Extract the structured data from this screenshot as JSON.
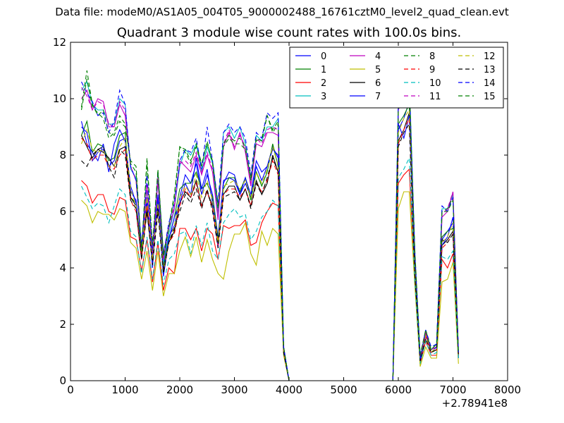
{
  "suptitle": "Data file: modeM0/AS1A05_004T05_9000002488_16761cztM0_level2_quad_clean.evt",
  "chart_data": {
    "type": "line",
    "title": "Quadrant 3 module wise count rates with 100.0s bins.",
    "xlabel": "",
    "ylabel": "",
    "x_offset_label": "+2.78941e8",
    "xlim": [
      0,
      8000
    ],
    "ylim": [
      0,
      12
    ],
    "xticks": [
      0,
      1000,
      2000,
      3000,
      4000,
      5000,
      6000,
      7000,
      8000
    ],
    "yticks": [
      0,
      2,
      4,
      6,
      8,
      10,
      12
    ],
    "grid": false,
    "legend_position": "top-right",
    "legend_columns": 4,
    "x": [
      200,
      300,
      400,
      500,
      600,
      700,
      800,
      900,
      1000,
      1100,
      1200,
      1300,
      1400,
      1500,
      1600,
      1700,
      1800,
      1900,
      2000,
      2100,
      2200,
      2300,
      2400,
      2500,
      2600,
      2700,
      2800,
      2900,
      3000,
      3100,
      3200,
      3300,
      3400,
      3500,
      3600,
      3700,
      3800,
      3900,
      4000,
      4100,
      5900,
      6000,
      6100,
      6200,
      6300,
      6400,
      6500,
      6600,
      6700,
      6800,
      6900,
      7000,
      7100
    ],
    "series": [
      {
        "name": "0",
        "color": "#0000ff",
        "dash": "solid",
        "values": [
          9.0,
          8.8,
          7.8,
          8.1,
          8.2,
          7.6,
          7.8,
          8.5,
          8.6,
          6.7,
          6.4,
          4.5,
          6.3,
          4.4,
          6.6,
          4.1,
          5.1,
          5.5,
          6.5,
          7.3,
          7.0,
          7.7,
          6.6,
          7.3,
          6.6,
          5.1,
          7.1,
          7.2,
          7.1,
          6.6,
          7.0,
          6.5,
          7.6,
          7.1,
          7.6,
          8.3,
          7.9,
          1.0,
          0.0,
          0.0,
          0.0,
          8.9,
          9.3,
          9.9,
          4.1,
          0.7,
          1.7,
          1.1,
          1.2,
          5.0,
          5.3,
          5.6,
          0.9
        ]
      },
      {
        "name": "1",
        "color": "#008000",
        "dash": "solid",
        "values": [
          8.7,
          9.2,
          8.1,
          8.4,
          8.3,
          7.8,
          7.9,
          8.7,
          8.8,
          6.5,
          6.3,
          4.6,
          6.1,
          4.2,
          6.4,
          4.0,
          5.0,
          5.8,
          6.8,
          7.0,
          7.0,
          7.4,
          6.8,
          7.0,
          6.5,
          5.0,
          6.8,
          7.2,
          7.2,
          6.7,
          7.2,
          6.4,
          7.4,
          6.9,
          7.4,
          8.4,
          7.6,
          1.1,
          0.0,
          0.0,
          0.0,
          9.1,
          9.4,
          9.8,
          4.1,
          0.8,
          1.6,
          1.0,
          1.1,
          5.1,
          5.3,
          5.4,
          0.9
        ]
      },
      {
        "name": "2",
        "color": "#ff0000",
        "dash": "solid",
        "values": [
          7.1,
          6.9,
          6.3,
          6.6,
          6.6,
          6.0,
          5.9,
          6.5,
          6.4,
          5.1,
          5.0,
          3.9,
          5.0,
          3.5,
          4.9,
          3.2,
          4.0,
          3.8,
          5.4,
          5.4,
          5.0,
          5.4,
          4.6,
          5.4,
          5.2,
          4.3,
          5.5,
          5.4,
          5.5,
          5.5,
          5.7,
          4.8,
          4.9,
          5.6,
          6.0,
          6.3,
          6.2,
          1.0,
          0.0,
          0.0,
          0.0,
          7.0,
          7.3,
          7.5,
          3.6,
          0.6,
          1.4,
          0.9,
          0.9,
          4.3,
          4.0,
          4.5,
          0.8
        ]
      },
      {
        "name": "3",
        "color": "#00bfbf",
        "dash": "solid",
        "values": [
          10.3,
          10.6,
          9.8,
          9.6,
          9.6,
          9.1,
          9.1,
          10.0,
          9.8,
          7.5,
          7.2,
          4.6,
          6.8,
          4.6,
          7.1,
          4.2,
          5.2,
          6.1,
          7.6,
          8.2,
          8.0,
          8.4,
          7.4,
          8.3,
          7.7,
          5.9,
          8.8,
          9.0,
          8.6,
          9.0,
          8.4,
          7.1,
          8.7,
          8.5,
          9.0,
          9.0,
          9.3,
          1.2,
          0.0,
          0.0,
          0.0,
          9.8,
          10.2,
          10.8,
          4.6,
          0.8,
          1.8,
          1.1,
          1.3,
          6.1,
          6.1,
          6.6,
          1.0
        ]
      },
      {
        "name": "4",
        "color": "#bf00bf",
        "dash": "solid",
        "values": [
          10.0,
          10.3,
          9.6,
          10.0,
          9.9,
          9.0,
          9.0,
          9.8,
          9.4,
          7.6,
          7.1,
          4.7,
          6.9,
          4.5,
          7.1,
          4.3,
          5.4,
          6.1,
          7.8,
          7.6,
          7.4,
          8.0,
          7.3,
          8.0,
          7.4,
          5.7,
          8.3,
          8.8,
          8.2,
          8.8,
          8.1,
          6.9,
          8.4,
          8.3,
          8.8,
          8.8,
          8.7,
          1.1,
          0.0,
          0.0,
          0.0,
          9.6,
          10.1,
          10.5,
          4.5,
          0.8,
          1.7,
          1.1,
          1.2,
          5.8,
          6.0,
          6.7,
          1.0
        ]
      },
      {
        "name": "5",
        "color": "#bfbf00",
        "dash": "solid",
        "values": [
          6.4,
          6.2,
          5.6,
          6.0,
          5.9,
          5.9,
          5.7,
          6.1,
          6.0,
          4.9,
          4.7,
          3.6,
          4.6,
          3.2,
          4.6,
          3.0,
          3.8,
          3.8,
          4.6,
          5.1,
          4.4,
          5.1,
          4.2,
          5.0,
          4.3,
          3.8,
          3.6,
          4.6,
          5.2,
          5.2,
          5.6,
          4.5,
          4.1,
          5.3,
          4.8,
          5.4,
          5.2,
          0.9,
          0.0,
          0.0,
          0.0,
          6.1,
          6.7,
          6.7,
          3.4,
          0.5,
          1.2,
          0.8,
          0.8,
          3.5,
          3.6,
          4.2,
          0.6
        ]
      },
      {
        "name": "6",
        "color": "#000000",
        "dash": "solid",
        "values": [
          8.7,
          8.3,
          7.9,
          8.2,
          8.1,
          7.9,
          7.6,
          8.2,
          8.3,
          6.5,
          6.2,
          4.5,
          6.0,
          4.3,
          6.2,
          3.9,
          4.9,
          5.3,
          6.3,
          6.7,
          6.5,
          7.1,
          6.2,
          6.7,
          6.2,
          4.9,
          6.6,
          6.9,
          6.9,
          6.4,
          6.8,
          6.2,
          7.1,
          6.6,
          7.0,
          8.0,
          7.4,
          1.0,
          0.0,
          0.0,
          0.0,
          8.5,
          8.9,
          9.5,
          3.9,
          0.7,
          1.6,
          1.0,
          1.1,
          4.8,
          5.0,
          5.3,
          0.9
        ]
      },
      {
        "name": "7",
        "color": "#0000ff",
        "dash": "solid",
        "values": [
          9.2,
          8.4,
          8.1,
          7.8,
          8.4,
          7.4,
          8.4,
          8.9,
          8.5,
          6.9,
          6.3,
          4.3,
          6.5,
          4.0,
          6.5,
          3.7,
          5.0,
          5.8,
          6.3,
          7.0,
          6.6,
          7.9,
          6.8,
          7.5,
          6.3,
          4.7,
          7.0,
          7.4,
          7.3,
          6.6,
          7.2,
          6.6,
          7.8,
          7.4,
          7.6,
          8.2,
          8.0,
          1.2,
          0.0,
          0.0,
          0.0,
          9.1,
          8.6,
          9.4,
          4.3,
          0.7,
          1.6,
          1.0,
          1.2,
          4.8,
          5.1,
          5.8,
          0.8
        ]
      },
      {
        "name": "8",
        "color": "#008000",
        "dash": "dashed",
        "values": [
          9.7,
          11.0,
          9.8,
          9.4,
          9.6,
          8.8,
          8.7,
          9.2,
          9.0,
          7.8,
          7.6,
          4.6,
          7.9,
          4.8,
          7.5,
          4.5,
          5.5,
          6.6,
          8.3,
          8.1,
          7.7,
          8.4,
          7.7,
          8.4,
          7.8,
          6.2,
          8.3,
          8.6,
          8.4,
          8.4,
          8.2,
          7.2,
          8.5,
          8.6,
          9.4,
          8.8,
          9.1,
          1.2,
          0.0,
          0.0,
          0.0,
          9.7,
          10.3,
          10.6,
          4.7,
          0.9,
          1.8,
          1.1,
          1.3,
          6.0,
          6.1,
          6.5,
          1.0
        ]
      },
      {
        "name": "9",
        "color": "#ff0000",
        "dash": "dashed",
        "values": [
          8.6,
          8.4,
          7.8,
          8.0,
          8.0,
          7.6,
          7.5,
          8.0,
          8.2,
          6.4,
          6.0,
          4.3,
          6.2,
          4.1,
          6.0,
          3.9,
          4.9,
          5.2,
          6.2,
          6.8,
          6.5,
          7.0,
          6.2,
          6.7,
          6.1,
          4.8,
          6.6,
          6.8,
          6.8,
          6.5,
          6.8,
          6.2,
          7.0,
          6.7,
          7.1,
          7.8,
          7.3,
          1.0,
          0.0,
          0.0,
          0.0,
          8.4,
          8.9,
          9.3,
          3.9,
          0.7,
          1.6,
          1.0,
          1.1,
          4.7,
          4.9,
          5.2,
          0.9
        ]
      },
      {
        "name": "10",
        "color": "#00bfbf",
        "dash": "dashed",
        "values": [
          6.9,
          6.5,
          6.1,
          6.3,
          6.2,
          5.6,
          6.2,
          6.8,
          6.6,
          5.3,
          5.1,
          3.8,
          5.1,
          3.6,
          5.0,
          3.4,
          4.3,
          4.5,
          5.2,
          5.3,
          4.5,
          5.5,
          4.8,
          5.6,
          4.6,
          4.3,
          5.6,
          5.9,
          6.1,
          5.8,
          5.9,
          5.0,
          5.3,
          5.8,
          6.0,
          6.4,
          6.2,
          1.0,
          0.0,
          0.0,
          0.0,
          7.2,
          7.5,
          7.9,
          3.6,
          0.6,
          1.4,
          0.9,
          1.0,
          4.4,
          4.3,
          4.6,
          0.8
        ]
      },
      {
        "name": "11",
        "color": "#bf00bf",
        "dash": "dashed",
        "values": [
          10.4,
          10.1,
          9.6,
          9.9,
          9.8,
          9.1,
          9.0,
          9.9,
          9.6,
          7.6,
          7.1,
          4.7,
          7.0,
          4.5,
          7.2,
          4.3,
          5.5,
          6.2,
          7.7,
          7.8,
          7.6,
          8.1,
          7.4,
          8.1,
          7.5,
          5.8,
          8.4,
          8.9,
          8.3,
          8.7,
          8.3,
          7.0,
          8.6,
          8.4,
          8.9,
          9.0,
          8.9,
          1.1,
          0.0,
          0.0,
          0.0,
          9.7,
          10.1,
          10.4,
          4.5,
          0.8,
          1.7,
          1.1,
          1.2,
          5.9,
          6.1,
          6.7,
          1.0
        ]
      },
      {
        "name": "12",
        "color": "#bfbf00",
        "dash": "dashed",
        "values": [
          8.4,
          8.9,
          8.2,
          8.1,
          8.2,
          7.6,
          7.6,
          8.3,
          8.6,
          6.8,
          6.2,
          4.4,
          6.5,
          4.3,
          6.3,
          3.9,
          4.9,
          5.5,
          6.5,
          6.9,
          6.6,
          7.3,
          6.5,
          7.1,
          6.4,
          4.9,
          6.9,
          7.0,
          7.1,
          6.8,
          7.1,
          6.5,
          7.4,
          7.0,
          7.5,
          8.3,
          7.6,
          1.0,
          0.0,
          0.0,
          0.0,
          8.8,
          9.3,
          9.6,
          4.1,
          0.8,
          1.6,
          1.0,
          1.2,
          4.9,
          5.1,
          5.6,
          0.9
        ]
      },
      {
        "name": "13",
        "color": "#000000",
        "dash": "dashed",
        "values": [
          7.8,
          7.6,
          8.0,
          8.2,
          8.3,
          7.6,
          7.2,
          8.2,
          8.0,
          6.4,
          6.1,
          4.3,
          6.0,
          4.1,
          6.0,
          3.8,
          4.9,
          5.4,
          6.0,
          6.6,
          6.3,
          6.8,
          6.1,
          6.8,
          6.0,
          4.7,
          6.5,
          6.6,
          6.7,
          6.4,
          6.8,
          6.1,
          7.0,
          6.6,
          7.2,
          7.9,
          7.4,
          1.0,
          0.0,
          0.0,
          0.0,
          8.3,
          8.8,
          9.1,
          3.8,
          0.7,
          1.5,
          1.0,
          1.1,
          5.0,
          4.9,
          5.2,
          0.9
        ]
      },
      {
        "name": "14",
        "color": "#0000ff",
        "dash": "dashed",
        "values": [
          10.6,
          10.2,
          9.9,
          9.4,
          9.5,
          8.8,
          9.2,
          10.3,
          9.8,
          7.6,
          7.1,
          4.8,
          7.3,
          4.6,
          7.4,
          4.5,
          5.6,
          6.3,
          7.8,
          8.2,
          8.1,
          8.6,
          7.5,
          9.0,
          7.8,
          6.3,
          8.8,
          9.1,
          8.8,
          9.0,
          8.6,
          7.3,
          8.8,
          8.6,
          9.5,
          9.3,
          9.5,
          1.2,
          0.0,
          0.0,
          0.0,
          9.9,
          10.4,
          10.6,
          4.6,
          0.8,
          1.8,
          1.2,
          1.3,
          6.2,
          6.0,
          6.5,
          1.0
        ]
      },
      {
        "name": "15",
        "color": "#008000",
        "dash": "dashed",
        "values": [
          9.6,
          10.7,
          9.7,
          9.5,
          9.3,
          8.6,
          8.8,
          9.4,
          9.1,
          7.7,
          7.4,
          4.7,
          7.7,
          4.8,
          7.4,
          4.4,
          5.4,
          6.5,
          8.3,
          8.2,
          7.8,
          8.3,
          7.6,
          8.5,
          7.7,
          6.1,
          8.4,
          8.7,
          8.5,
          8.6,
          8.3,
          7.1,
          8.6,
          8.5,
          9.4,
          8.9,
          9.2,
          1.2,
          0.0,
          0.0,
          0.0,
          9.6,
          10.2,
          10.5,
          4.6,
          0.9,
          1.8,
          1.1,
          1.3,
          6.0,
          6.0,
          6.4,
          1.0
        ]
      }
    ]
  }
}
